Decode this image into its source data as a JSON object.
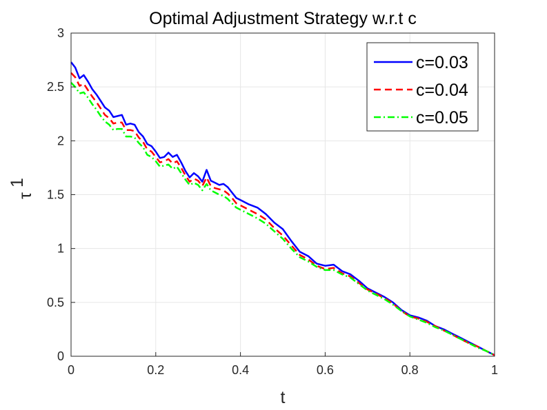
{
  "chart_data": {
    "type": "line",
    "title": "Optimal Adjustment Strategy w.r.t c",
    "xlabel": "t",
    "ylabel": "τ",
    "ylabel_superscript": "1",
    "xlim": [
      0,
      1
    ],
    "ylim": [
      0,
      3
    ],
    "xticks": [
      "0",
      "0.2",
      "0.4",
      "0.6",
      "0.8",
      "1"
    ],
    "yticks": [
      "0",
      "0.5",
      "1",
      "1.5",
      "2",
      "2.5",
      "3"
    ],
    "grid": true,
    "legend_position": "top-right",
    "x": [
      0,
      0.01,
      0.02,
      0.03,
      0.04,
      0.05,
      0.06,
      0.07,
      0.08,
      0.09,
      0.1,
      0.11,
      0.12,
      0.13,
      0.14,
      0.15,
      0.16,
      0.17,
      0.18,
      0.19,
      0.2,
      0.21,
      0.22,
      0.23,
      0.24,
      0.25,
      0.26,
      0.27,
      0.28,
      0.29,
      0.3,
      0.31,
      0.32,
      0.33,
      0.34,
      0.35,
      0.36,
      0.37,
      0.38,
      0.39,
      0.4,
      0.42,
      0.44,
      0.46,
      0.48,
      0.5,
      0.52,
      0.54,
      0.56,
      0.58,
      0.6,
      0.62,
      0.64,
      0.66,
      0.68,
      0.7,
      0.72,
      0.74,
      0.76,
      0.78,
      0.8,
      0.82,
      0.84,
      0.86,
      0.88,
      0.9,
      0.92,
      0.94,
      0.96,
      0.98,
      1.0
    ],
    "series": [
      {
        "name": "c=0.03",
        "color": "#0000ff",
        "dash": "solid",
        "values": [
          2.73,
          2.68,
          2.58,
          2.61,
          2.55,
          2.48,
          2.43,
          2.37,
          2.31,
          2.28,
          2.22,
          2.23,
          2.24,
          2.15,
          2.16,
          2.15,
          2.08,
          2.04,
          1.97,
          1.95,
          1.9,
          1.84,
          1.85,
          1.89,
          1.85,
          1.87,
          1.8,
          1.72,
          1.66,
          1.7,
          1.67,
          1.62,
          1.73,
          1.63,
          1.61,
          1.59,
          1.6,
          1.57,
          1.52,
          1.47,
          1.45,
          1.41,
          1.38,
          1.32,
          1.24,
          1.18,
          1.07,
          0.97,
          0.93,
          0.86,
          0.84,
          0.85,
          0.79,
          0.76,
          0.7,
          0.63,
          0.59,
          0.55,
          0.5,
          0.43,
          0.38,
          0.36,
          0.33,
          0.28,
          0.25,
          0.21,
          0.17,
          0.13,
          0.09,
          0.05,
          0.01
        ]
      },
      {
        "name": "c=0.04",
        "color": "#ff0000",
        "dash": "dashed",
        "values": [
          2.63,
          2.59,
          2.51,
          2.53,
          2.47,
          2.41,
          2.36,
          2.3,
          2.24,
          2.21,
          2.16,
          2.17,
          2.17,
          2.1,
          2.1,
          2.09,
          2.03,
          1.99,
          1.92,
          1.9,
          1.85,
          1.8,
          1.81,
          1.83,
          1.79,
          1.81,
          1.75,
          1.68,
          1.62,
          1.65,
          1.63,
          1.58,
          1.66,
          1.58,
          1.56,
          1.55,
          1.54,
          1.51,
          1.47,
          1.42,
          1.4,
          1.36,
          1.32,
          1.27,
          1.19,
          1.12,
          1.03,
          0.94,
          0.9,
          0.84,
          0.81,
          0.82,
          0.77,
          0.74,
          0.68,
          0.62,
          0.58,
          0.54,
          0.49,
          0.42,
          0.37,
          0.35,
          0.32,
          0.28,
          0.24,
          0.2,
          0.16,
          0.12,
          0.09,
          0.05,
          0.01
        ]
      },
      {
        "name": "c=0.05",
        "color": "#00ff00",
        "dash": "dashdot",
        "values": [
          2.54,
          2.5,
          2.44,
          2.45,
          2.4,
          2.34,
          2.29,
          2.23,
          2.18,
          2.15,
          2.1,
          2.11,
          2.11,
          2.04,
          2.04,
          2.03,
          1.98,
          1.94,
          1.87,
          1.85,
          1.81,
          1.76,
          1.77,
          1.78,
          1.74,
          1.76,
          1.7,
          1.64,
          1.59,
          1.61,
          1.59,
          1.54,
          1.6,
          1.54,
          1.52,
          1.5,
          1.49,
          1.46,
          1.42,
          1.38,
          1.36,
          1.32,
          1.28,
          1.23,
          1.16,
          1.09,
          1.0,
          0.92,
          0.88,
          0.83,
          0.8,
          0.8,
          0.76,
          0.73,
          0.67,
          0.61,
          0.57,
          0.53,
          0.48,
          0.42,
          0.37,
          0.34,
          0.31,
          0.27,
          0.24,
          0.2,
          0.16,
          0.12,
          0.08,
          0.05,
          0.01
        ]
      }
    ]
  }
}
